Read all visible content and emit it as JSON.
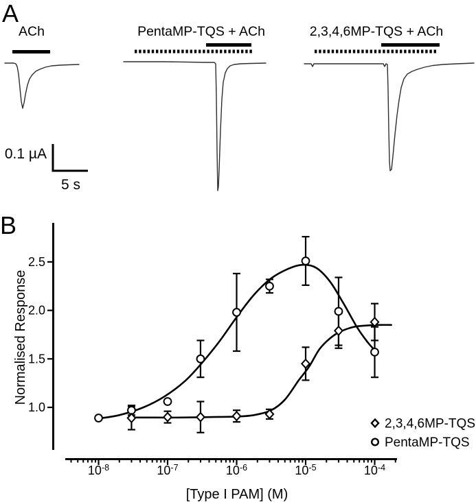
{
  "figure": {
    "background": "#ffffff",
    "ink": "#000000",
    "trace_ink": "#2e2e2e"
  },
  "panel_a": {
    "label": "A",
    "scale_bar": {
      "current_label": "0.1 µA",
      "time_label": "5 s"
    },
    "traces": [
      {
        "label": "ACh",
        "solid_bar": {
          "x1": 18,
          "x2": 73,
          "y": 75.5
        },
        "dotted_bar": null,
        "points": [
          [
            7,
            92
          ],
          [
            20,
            92
          ],
          [
            23,
            93
          ],
          [
            25,
            97
          ],
          [
            27,
            108
          ],
          [
            29,
            128
          ],
          [
            31,
            148
          ],
          [
            33,
            158
          ],
          [
            35,
            150
          ],
          [
            37,
            138
          ],
          [
            40,
            124
          ],
          [
            43,
            115
          ],
          [
            47,
            109
          ],
          [
            52,
            104
          ],
          [
            58,
            101
          ],
          [
            66,
            98
          ],
          [
            75,
            96
          ],
          [
            88,
            95
          ],
          [
            100,
            94.5
          ],
          [
            115,
            94
          ]
        ]
      },
      {
        "label": "PentaMP-TQS + ACh",
        "solid_bar": {
          "x1": 300,
          "x2": 366,
          "y": 65.5
        },
        "dotted_bar": {
          "x1": 196,
          "x2": 367,
          "y": 75
        },
        "points": [
          [
            180,
            90
          ],
          [
            240,
            90
          ],
          [
            300,
            91
          ],
          [
            312,
            91
          ],
          [
            314,
            93
          ],
          [
            315,
            140
          ],
          [
            316,
            220
          ],
          [
            317,
            278
          ],
          [
            318,
            272
          ],
          [
            319,
            248
          ],
          [
            321,
            190
          ],
          [
            323,
            145
          ],
          [
            325,
            120
          ],
          [
            328,
            106
          ],
          [
            331,
            100
          ],
          [
            335,
            96
          ],
          [
            341,
            94
          ],
          [
            350,
            93
          ],
          [
            365,
            92.5
          ],
          [
            387,
            92
          ]
        ]
      },
      {
        "label": "2,3,4,6MP-TQS + ACh",
        "solid_bar": {
          "x1": 555,
          "x2": 640,
          "y": 65.5
        },
        "dotted_bar": {
          "x1": 458,
          "x2": 635,
          "y": 75
        },
        "points": [
          [
            443,
            93
          ],
          [
            453,
            93
          ],
          [
            455,
            97
          ],
          [
            457,
            93
          ],
          [
            500,
            93
          ],
          [
            545,
            93
          ],
          [
            558,
            93
          ],
          [
            560,
            97
          ],
          [
            562,
            93
          ],
          [
            564,
            94
          ],
          [
            565,
            130
          ],
          [
            566,
            190
          ],
          [
            567,
            235
          ],
          [
            568,
            249
          ],
          [
            570,
            247
          ],
          [
            572,
            228
          ],
          [
            575,
            196
          ],
          [
            578,
            168
          ],
          [
            581,
            146
          ],
          [
            584,
            128
          ],
          [
            588,
            115
          ],
          [
            593,
            108
          ],
          [
            600,
            104
          ],
          [
            608,
            101
          ],
          [
            618,
            98
          ],
          [
            630,
            95.5
          ],
          [
            645,
            94
          ],
          [
            665,
            93
          ],
          [
            690,
            92
          ]
        ]
      }
    ]
  },
  "panel_b": {
    "label": "B",
    "chart_data": {
      "type": "scatter",
      "title": "",
      "xlabel": "[Type I PAM] (M)",
      "ylabel": "Normalised Response",
      "x_scale": "log",
      "x_tick_exponents": [
        -8,
        -7,
        -6,
        -5,
        -4
      ],
      "x_range_log": [
        -8.48,
        -3.68
      ],
      "y_ticks": [
        1.0,
        1.5,
        2.0,
        2.5
      ],
      "y_range": [
        0.55,
        2.9
      ],
      "grid": false,
      "legend_position": "lower right",
      "series": [
        {
          "name": "PentaMP-TQS",
          "marker": "circle",
          "x": [
            1e-08,
            3e-08,
            1e-07,
            3e-07,
            1e-06,
            3e-06,
            1e-05,
            3e-05,
            0.0001
          ],
          "y": [
            0.89,
            0.97,
            1.06,
            1.5,
            1.98,
            2.25,
            2.51,
            1.99,
            1.57
          ],
          "yerr": [
            0,
            0.05,
            0,
            0.19,
            0.4,
            0.07,
            0.25,
            0.35,
            0.26
          ],
          "fit_curve_log": [
            [
              -8,
              0.885
            ],
            [
              -7.7,
              0.92
            ],
            [
              -7.35,
              1.0
            ],
            [
              -7.05,
              1.11
            ],
            [
              -6.75,
              1.27
            ],
            [
              -6.5,
              1.46
            ],
            [
              -6.25,
              1.68
            ],
            [
              -6,
              1.93
            ],
            [
              -5.75,
              2.16
            ],
            [
              -5.5,
              2.33
            ],
            [
              -5.25,
              2.43
            ],
            [
              -5.05,
              2.47
            ],
            [
              -4.85,
              2.44
            ],
            [
              -4.65,
              2.3
            ],
            [
              -4.45,
              2.07
            ],
            [
              -4.25,
              1.82
            ],
            [
              -4.1,
              1.67
            ],
            [
              -4.0,
              1.59
            ]
          ]
        },
        {
          "name": "2,3,4,6MP-TQS",
          "marker": "diamond",
          "x": [
            3e-08,
            1e-07,
            3e-07,
            1e-06,
            3e-06,
            1e-05,
            3e-05,
            0.0001
          ],
          "y": [
            0.89,
            0.9,
            0.9,
            0.91,
            0.93,
            1.45,
            1.79,
            1.88
          ],
          "yerr": [
            0.12,
            0.06,
            0.16,
            0.06,
            0.05,
            0.17,
            0.18,
            0.19
          ],
          "fit_curve_log": [
            [
              -7.55,
              0.895
            ],
            [
              -7.2,
              0.895
            ],
            [
              -6.8,
              0.895
            ],
            [
              -6.4,
              0.9
            ],
            [
              -6.0,
              0.905
            ],
            [
              -5.75,
              0.92
            ],
            [
              -5.5,
              0.97
            ],
            [
              -5.3,
              1.08
            ],
            [
              -5.1,
              1.28
            ],
            [
              -4.95,
              1.42
            ],
            [
              -4.8,
              1.6
            ],
            [
              -4.65,
              1.71
            ],
            [
              -4.5,
              1.78
            ],
            [
              -4.3,
              1.83
            ],
            [
              -4.1,
              1.845
            ],
            [
              -3.9,
              1.85
            ],
            [
              -3.76,
              1.85
            ]
          ]
        }
      ],
      "legend": [
        {
          "marker": "diamond",
          "label": "2,3,4,6MP-TQS"
        },
        {
          "marker": "circle",
          "label": "PentaMP-TQS"
        }
      ]
    }
  }
}
